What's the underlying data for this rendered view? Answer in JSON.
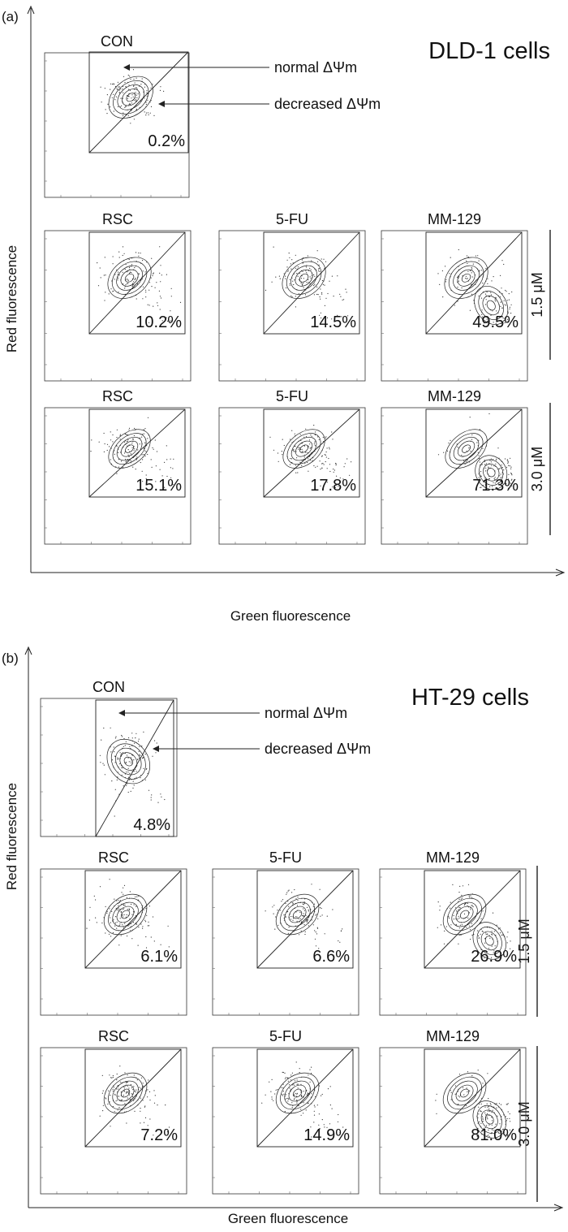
{
  "panels": [
    {
      "tag": "(a)",
      "title": "DLD-1 cells",
      "y_label": "Red fluorescence",
      "x_label": "Green fluorescence",
      "annotations": [
        "normal ΔΨm",
        "decreased ΔΨm"
      ],
      "row_labels": [
        "1.5 μM",
        "3.0 μM"
      ],
      "plots": [
        {
          "name": "CON",
          "percent": "0.2%",
          "row": "control"
        },
        {
          "name": "RSC",
          "percent": "10.2%",
          "row": "1.5 μM"
        },
        {
          "name": "5-FU",
          "percent": "14.5%",
          "row": "1.5 μM"
        },
        {
          "name": "MM-129",
          "percent": "49.5%",
          "row": "1.5 μM"
        },
        {
          "name": "RSC",
          "percent": "15.1%",
          "row": "3.0 μM"
        },
        {
          "name": "5-FU",
          "percent": "17.8%",
          "row": "3.0 μM"
        },
        {
          "name": "MM-129",
          "percent": "71.3%",
          "row": "3.0 μM"
        }
      ]
    },
    {
      "tag": "(b)",
      "title": "HT-29 cells",
      "y_label": "Red fluorescence",
      "x_label": "Green fluorescence",
      "annotations": [
        "normal ΔΨm",
        "decreased ΔΨm"
      ],
      "row_labels": [
        "1.5 μM",
        "3.0 μM"
      ],
      "plots": [
        {
          "name": "CON",
          "percent": "4.8%",
          "row": "control"
        },
        {
          "name": "RSC",
          "percent": "6.1%",
          "row": "1.5 μM"
        },
        {
          "name": "5-FU",
          "percent": "6.6%",
          "row": "1.5 μM"
        },
        {
          "name": "MM-129",
          "percent": "26.9%",
          "row": "1.5 μM"
        },
        {
          "name": "RSC",
          "percent": "7.2%",
          "row": "3.0 μM"
        },
        {
          "name": "5-FU",
          "percent": "14.9%",
          "row": "3.0 μM"
        },
        {
          "name": "MM-129",
          "percent": "81.0%",
          "row": "3.0 μM"
        }
      ]
    }
  ]
}
